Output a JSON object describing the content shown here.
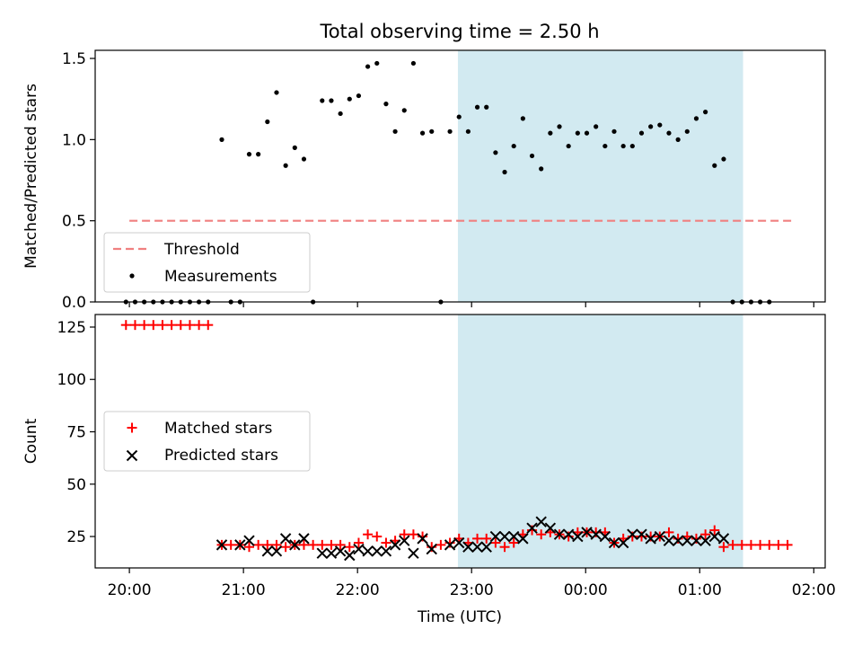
{
  "chart_data": {
    "type": "scatter",
    "title": "Total observing time = 2.50 h",
    "xlabel": "Time (UTC)",
    "x_units": "hours since 20:00 UTC",
    "xlim": [
      -0.3,
      6.1
    ],
    "x_ticks": [
      {
        "value": 0,
        "label": "20:00"
      },
      {
        "value": 1,
        "label": "21:00"
      },
      {
        "value": 2,
        "label": "22:00"
      },
      {
        "value": 3,
        "label": "23:00"
      },
      {
        "value": 4,
        "label": "00:00"
      },
      {
        "value": 5,
        "label": "01:00"
      },
      {
        "value": 6,
        "label": "02:00"
      }
    ],
    "highlight_band": {
      "x_start": 2.88,
      "x_end": 5.38,
      "color": "#add8e6"
    },
    "panels": [
      {
        "ylabel": "Matched/Predicted stars",
        "ylim": [
          0,
          1.55
        ],
        "y_ticks": [
          0.0,
          0.5,
          1.0,
          1.5
        ],
        "y_tick_labels": [
          "0.0",
          "0.5",
          "1.0",
          "1.5"
        ],
        "legend_position": "lower-left",
        "threshold": {
          "name": "Threshold",
          "value": 0.5,
          "x_start": 0,
          "x_end": 5.83,
          "color": "#f08080"
        },
        "series": [
          {
            "name": "Measurements",
            "marker": "dot",
            "color": "#000000",
            "points": [
              [
                -0.03,
                0
              ],
              [
                0.05,
                0
              ],
              [
                0.13,
                0
              ],
              [
                0.21,
                0
              ],
              [
                0.29,
                0
              ],
              [
                0.37,
                0
              ],
              [
                0.45,
                0
              ],
              [
                0.53,
                0
              ],
              [
                0.61,
                0
              ],
              [
                0.69,
                0
              ],
              [
                0.81,
                1.0
              ],
              [
                0.89,
                0
              ],
              [
                0.97,
                0
              ],
              [
                1.05,
                0.91
              ],
              [
                1.13,
                0.91
              ],
              [
                1.21,
                1.11
              ],
              [
                1.29,
                1.29
              ],
              [
                1.37,
                0.84
              ],
              [
                1.45,
                0.95
              ],
              [
                1.53,
                0.88
              ],
              [
                1.61,
                0
              ],
              [
                1.69,
                1.24
              ],
              [
                1.77,
                1.24
              ],
              [
                1.85,
                1.16
              ],
              [
                1.93,
                1.25
              ],
              [
                2.01,
                1.27
              ],
              [
                2.09,
                1.45
              ],
              [
                2.17,
                1.47
              ],
              [
                2.25,
                1.22
              ],
              [
                2.33,
                1.05
              ],
              [
                2.41,
                1.18
              ],
              [
                2.49,
                1.47
              ],
              [
                2.57,
                1.04
              ],
              [
                2.65,
                1.05
              ],
              [
                2.73,
                0
              ],
              [
                2.81,
                1.05
              ],
              [
                2.89,
                1.14
              ],
              [
                2.97,
                1.05
              ],
              [
                3.05,
                1.2
              ],
              [
                3.13,
                1.2
              ],
              [
                3.21,
                0.92
              ],
              [
                3.29,
                0.8
              ],
              [
                3.37,
                0.96
              ],
              [
                3.45,
                1.13
              ],
              [
                3.53,
                0.9
              ],
              [
                3.61,
                0.82
              ],
              [
                3.69,
                1.04
              ],
              [
                3.77,
                1.08
              ],
              [
                3.85,
                0.96
              ],
              [
                3.93,
                1.04
              ],
              [
                4.01,
                1.04
              ],
              [
                4.09,
                1.08
              ],
              [
                4.17,
                0.96
              ],
              [
                4.25,
                1.05
              ],
              [
                4.33,
                0.96
              ],
              [
                4.41,
                0.96
              ],
              [
                4.49,
                1.04
              ],
              [
                4.57,
                1.08
              ],
              [
                4.65,
                1.09
              ],
              [
                4.73,
                1.04
              ],
              [
                4.81,
                1.0
              ],
              [
                4.89,
                1.05
              ],
              [
                4.97,
                1.13
              ],
              [
                5.05,
                1.17
              ],
              [
                5.13,
                0.84
              ],
              [
                5.21,
                0.88
              ],
              [
                5.29,
                0
              ],
              [
                5.37,
                0
              ],
              [
                5.45,
                0
              ],
              [
                5.53,
                0
              ],
              [
                5.61,
                0
              ]
            ]
          }
        ]
      },
      {
        "ylabel": "Count",
        "ylim": [
          10,
          131
        ],
        "y_ticks": [
          25,
          50,
          75,
          100,
          125
        ],
        "y_tick_labels": [
          "25",
          "50",
          "75",
          "100",
          "125"
        ],
        "legend_position": "center-left",
        "series": [
          {
            "name": "Matched stars",
            "marker": "plus",
            "color": "#ff0000",
            "points": [
              [
                -0.03,
                126
              ],
              [
                0.05,
                126
              ],
              [
                0.13,
                126
              ],
              [
                0.21,
                126
              ],
              [
                0.29,
                126
              ],
              [
                0.37,
                126
              ],
              [
                0.45,
                126
              ],
              [
                0.53,
                126
              ],
              [
                0.61,
                126
              ],
              [
                0.69,
                126
              ],
              [
                0.81,
                21
              ],
              [
                0.89,
                21
              ],
              [
                0.97,
                21
              ],
              [
                1.05,
                20
              ],
              [
                1.13,
                21
              ],
              [
                1.21,
                21
              ],
              [
                1.29,
                21
              ],
              [
                1.37,
                20
              ],
              [
                1.45,
                21
              ],
              [
                1.53,
                21
              ],
              [
                1.61,
                21
              ],
              [
                1.69,
                21
              ],
              [
                1.77,
                21
              ],
              [
                1.85,
                21
              ],
              [
                1.93,
                20
              ],
              [
                2.01,
                22
              ],
              [
                2.09,
                26
              ],
              [
                2.17,
                25
              ],
              [
                2.25,
                22
              ],
              [
                2.33,
                23
              ],
              [
                2.41,
                26
              ],
              [
                2.49,
                26
              ],
              [
                2.57,
                25
              ],
              [
                2.65,
                20
              ],
              [
                2.73,
                21
              ],
              [
                2.81,
                22
              ],
              [
                2.89,
                24
              ],
              [
                2.97,
                22
              ],
              [
                3.05,
                24
              ],
              [
                3.13,
                24
              ],
              [
                3.21,
                22
              ],
              [
                3.29,
                20
              ],
              [
                3.37,
                22
              ],
              [
                3.45,
                26
              ],
              [
                3.53,
                28
              ],
              [
                3.61,
                26
              ],
              [
                3.69,
                27
              ],
              [
                3.77,
                26
              ],
              [
                3.85,
                25
              ],
              [
                3.93,
                27
              ],
              [
                4.01,
                27
              ],
              [
                4.09,
                27
              ],
              [
                4.17,
                27
              ],
              [
                4.25,
                22
              ],
              [
                4.33,
                24
              ],
              [
                4.41,
                25
              ],
              [
                4.49,
                25
              ],
              [
                4.57,
                25
              ],
              [
                4.65,
                25
              ],
              [
                4.73,
                27
              ],
              [
                4.81,
                24
              ],
              [
                4.89,
                25
              ],
              [
                4.97,
                24
              ],
              [
                5.05,
                26
              ],
              [
                5.13,
                28
              ],
              [
                5.21,
                20
              ],
              [
                5.29,
                21
              ],
              [
                5.37,
                21
              ],
              [
                5.45,
                21
              ],
              [
                5.53,
                21
              ],
              [
                5.61,
                21
              ],
              [
                5.69,
                21
              ],
              [
                5.77,
                21
              ]
            ]
          },
          {
            "name": "Predicted stars",
            "marker": "x",
            "color": "#000000",
            "points": [
              [
                0.81,
                21
              ],
              [
                0.97,
                21
              ],
              [
                1.05,
                23
              ],
              [
                1.21,
                18
              ],
              [
                1.29,
                18
              ],
              [
                1.37,
                24
              ],
              [
                1.45,
                21
              ],
              [
                1.53,
                24
              ],
              [
                1.69,
                17
              ],
              [
                1.77,
                17
              ],
              [
                1.85,
                18
              ],
              [
                1.93,
                16
              ],
              [
                2.01,
                19
              ],
              [
                2.09,
                18
              ],
              [
                2.17,
                18
              ],
              [
                2.25,
                18
              ],
              [
                2.33,
                21
              ],
              [
                2.41,
                23
              ],
              [
                2.49,
                17
              ],
              [
                2.57,
                24
              ],
              [
                2.65,
                19
              ],
              [
                2.81,
                21
              ],
              [
                2.89,
                22
              ],
              [
                2.97,
                20
              ],
              [
                3.05,
                20
              ],
              [
                3.13,
                20
              ],
              [
                3.21,
                25
              ],
              [
                3.29,
                25
              ],
              [
                3.37,
                25
              ],
              [
                3.45,
                24
              ],
              [
                3.53,
                29
              ],
              [
                3.61,
                32
              ],
              [
                3.69,
                29
              ],
              [
                3.77,
                26
              ],
              [
                3.85,
                26
              ],
              [
                3.93,
                25
              ],
              [
                4.01,
                27
              ],
              [
                4.09,
                26
              ],
              [
                4.17,
                25
              ],
              [
                4.25,
                22
              ],
              [
                4.33,
                22
              ],
              [
                4.41,
                26
              ],
              [
                4.49,
                26
              ],
              [
                4.57,
                24
              ],
              [
                4.65,
                25
              ],
              [
                4.73,
                23
              ],
              [
                4.81,
                23
              ],
              [
                4.89,
                23
              ],
              [
                4.97,
                23
              ],
              [
                5.05,
                23
              ],
              [
                5.13,
                25
              ],
              [
                5.21,
                24
              ]
            ]
          }
        ]
      }
    ]
  }
}
